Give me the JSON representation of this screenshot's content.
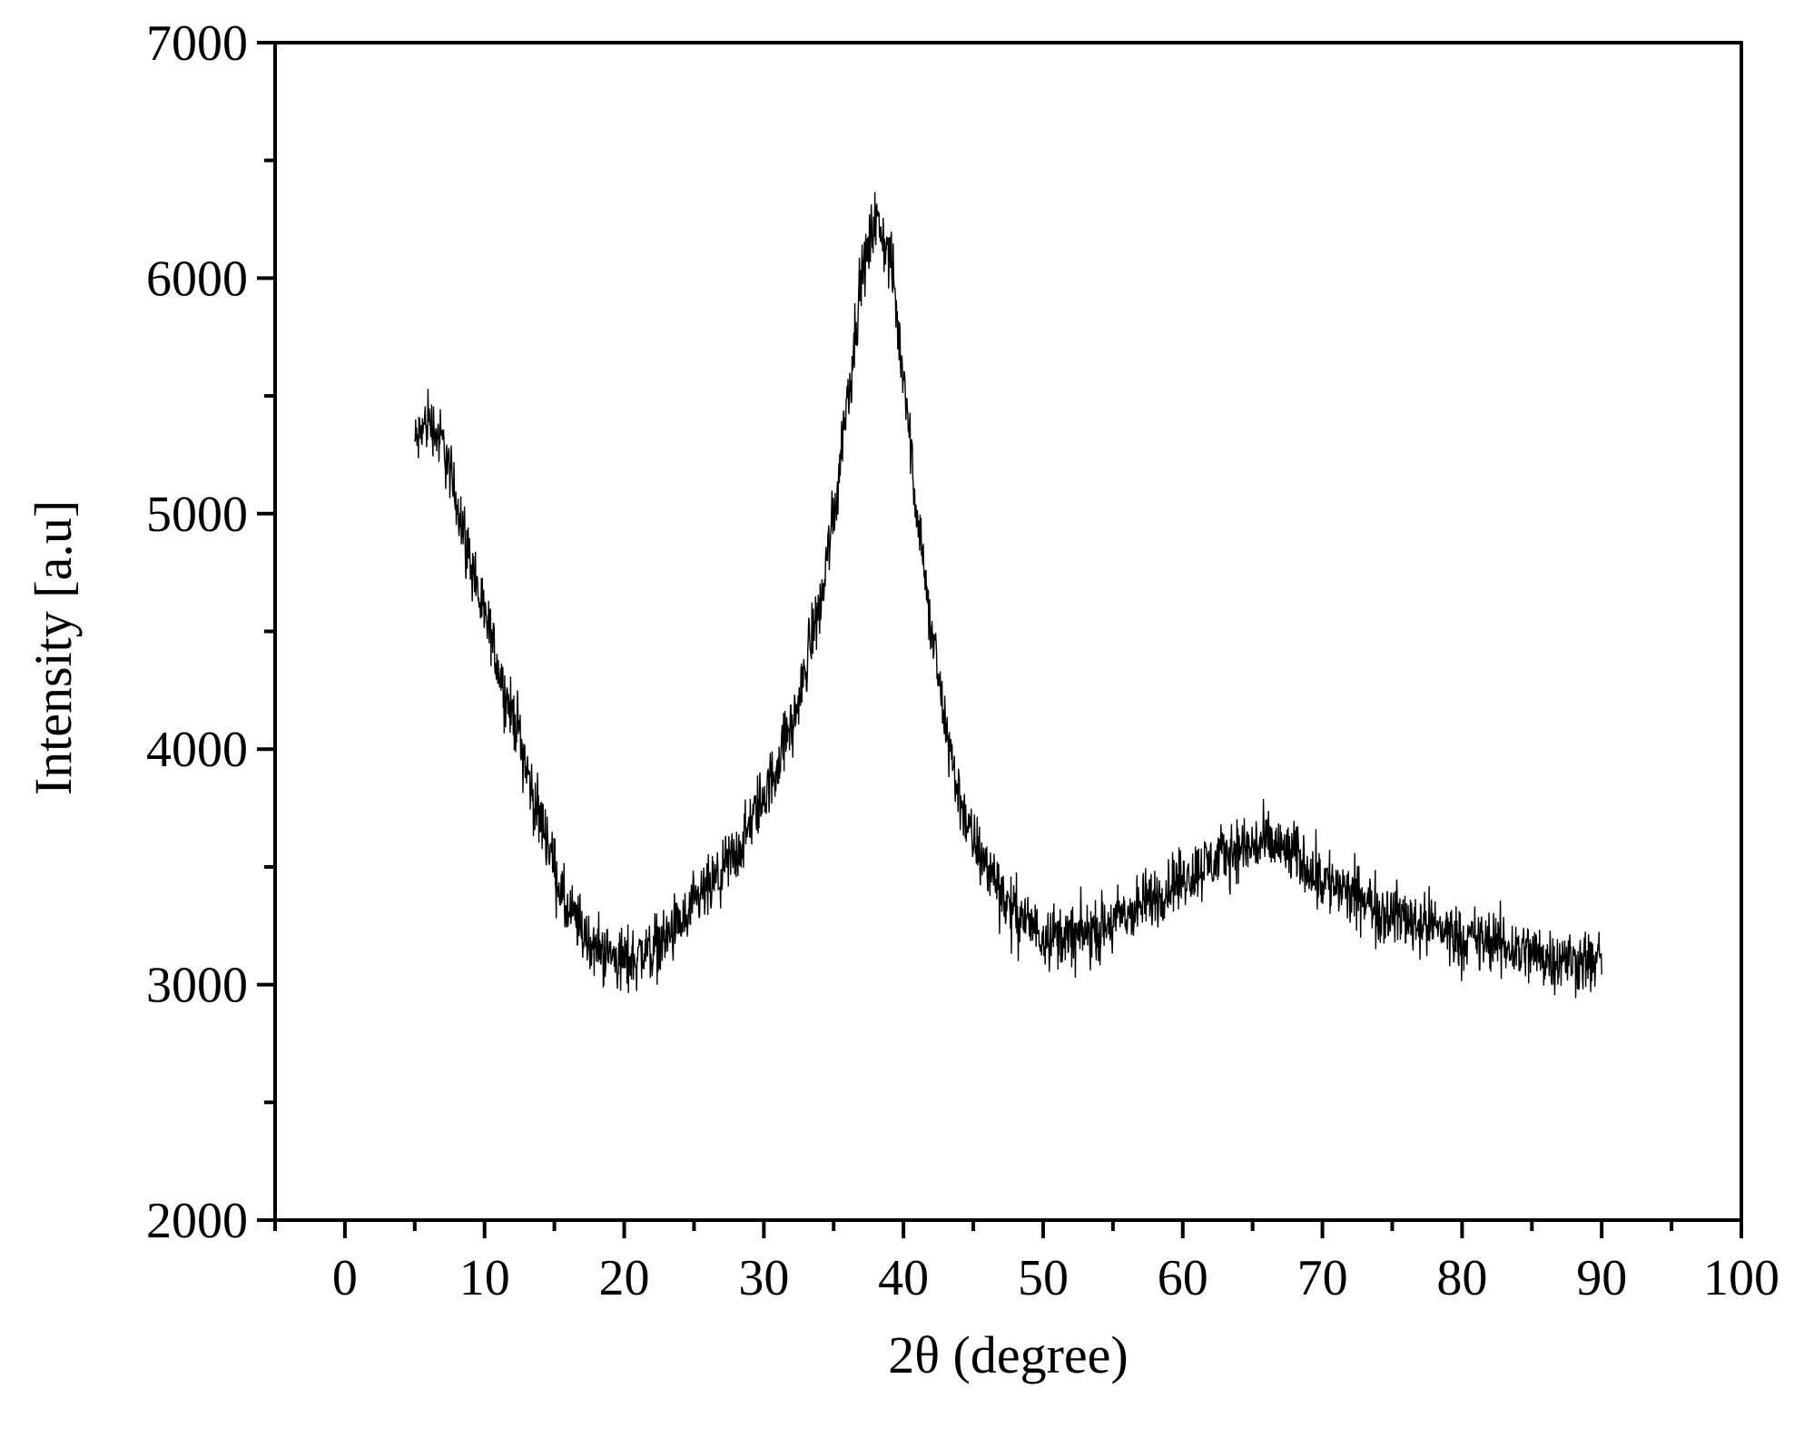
{
  "chart_data": {
    "type": "line",
    "title": "",
    "xlabel": "2θ (degree)",
    "ylabel": "Intensity [a.u]",
    "xlim": [
      -5,
      100
    ],
    "ylim": [
      2000,
      7000
    ],
    "xticks": [
      0,
      10,
      20,
      30,
      40,
      50,
      60,
      70,
      80,
      90,
      100
    ],
    "yticks": [
      2000,
      3000,
      4000,
      5000,
      6000,
      7000
    ],
    "x_minor_step": 5,
    "y_minor_step": 500,
    "grid": false,
    "legend": "none",
    "line_color": "#000000",
    "series": [
      {
        "x": [
          5,
          6,
          7,
          8,
          9,
          10,
          12,
          14,
          16,
          18,
          20,
          22,
          24,
          26,
          28,
          30,
          32,
          34,
          35,
          36,
          37,
          38,
          39,
          40,
          41,
          42,
          43,
          44,
          45,
          46,
          48,
          50,
          52,
          54,
          56,
          58,
          60,
          62,
          64,
          66,
          68,
          70,
          72,
          75,
          78,
          80,
          82,
          84,
          86,
          88,
          90
        ],
        "y": [
          5300,
          5400,
          5300,
          5050,
          4800,
          4550,
          4150,
          3700,
          3300,
          3150,
          3100,
          3150,
          3250,
          3400,
          3550,
          3800,
          4100,
          4600,
          5000,
          5500,
          6000,
          6250,
          6100,
          5600,
          5000,
          4500,
          4100,
          3800,
          3600,
          3500,
          3300,
          3220,
          3200,
          3230,
          3300,
          3370,
          3450,
          3520,
          3580,
          3600,
          3550,
          3450,
          3380,
          3300,
          3250,
          3200,
          3180,
          3150,
          3120,
          3100,
          3100
        ],
        "noise_amplitude": 200
      }
    ]
  }
}
